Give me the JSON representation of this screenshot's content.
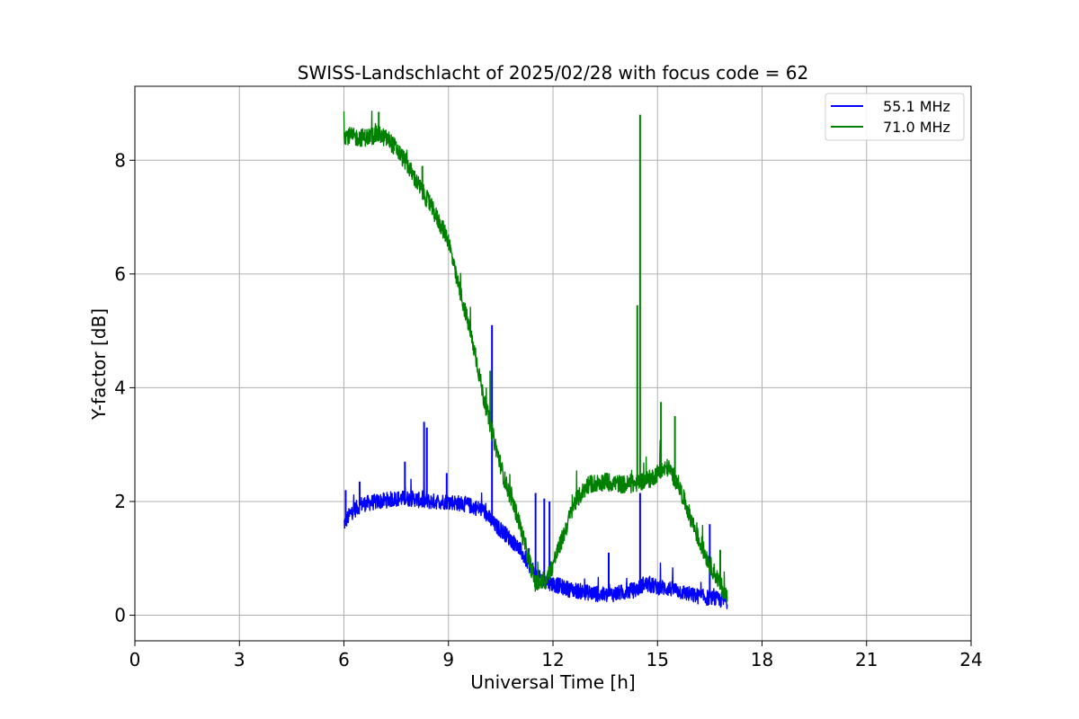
{
  "chart_data": {
    "type": "line",
    "title": "SWISS-Landschlacht of 2025/02/28 with focus code = 62",
    "xlabel": "Universal Time [h]",
    "ylabel": "Y-factor [dB]",
    "xlim": [
      0,
      24
    ],
    "ylim": [
      -0.45,
      9.3
    ],
    "xticks": [
      0,
      3,
      6,
      9,
      12,
      15,
      18,
      21,
      24
    ],
    "yticks": [
      0,
      2,
      4,
      6,
      8
    ],
    "grid": true,
    "legend_position": "top-right",
    "series": [
      {
        "name": "55.1 MHz",
        "color": "#0000ff",
        "x": [
          6.0,
          6.2,
          6.5,
          7.0,
          7.5,
          8.0,
          8.3,
          8.6,
          9.0,
          9.5,
          10.0,
          10.3,
          10.6,
          11.0,
          11.3,
          11.6,
          12.0,
          12.5,
          13.0,
          13.5,
          14.0,
          14.4,
          14.5,
          14.6,
          15.0,
          15.5,
          16.0,
          16.5,
          17.0
        ],
        "y": [
          1.6,
          1.8,
          1.95,
          2.0,
          2.05,
          2.05,
          2.0,
          2.0,
          2.0,
          1.95,
          1.85,
          1.6,
          1.45,
          1.2,
          0.9,
          0.65,
          0.55,
          0.45,
          0.4,
          0.35,
          0.4,
          0.45,
          0.5,
          0.55,
          0.5,
          0.45,
          0.35,
          0.3,
          0.25
        ]
      },
      {
        "name": "71.0 MHz",
        "color": "#008000",
        "x": [
          6.0,
          6.3,
          6.6,
          7.0,
          7.3,
          7.5,
          7.8,
          8.1,
          8.4,
          8.7,
          9.0,
          9.2,
          9.5,
          9.8,
          10.0,
          10.3,
          10.6,
          11.0,
          11.3,
          11.5,
          11.8,
          12.0,
          12.3,
          12.6,
          13.0,
          13.5,
          14.0,
          14.3,
          14.5,
          14.8,
          15.0,
          15.3,
          15.6,
          15.9,
          16.2,
          16.5,
          16.8,
          17.0
        ],
        "y": [
          8.45,
          8.4,
          8.4,
          8.45,
          8.35,
          8.2,
          7.95,
          7.6,
          7.3,
          6.95,
          6.6,
          6.0,
          5.3,
          4.5,
          3.85,
          3.1,
          2.4,
          1.7,
          1.0,
          0.55,
          0.6,
          0.9,
          1.4,
          1.95,
          2.3,
          2.35,
          2.3,
          2.3,
          2.35,
          2.4,
          2.5,
          2.6,
          2.3,
          1.8,
          1.3,
          0.9,
          0.55,
          0.3
        ]
      }
    ],
    "spikes": [
      {
        "series": "55.1 MHz",
        "x": 6.05,
        "y": 2.2
      },
      {
        "series": "55.1 MHz",
        "x": 6.45,
        "y": 2.35
      },
      {
        "series": "55.1 MHz",
        "x": 7.75,
        "y": 2.7
      },
      {
        "series": "55.1 MHz",
        "x": 8.3,
        "y": 3.4
      },
      {
        "series": "55.1 MHz",
        "x": 8.38,
        "y": 3.3
      },
      {
        "series": "55.1 MHz",
        "x": 8.95,
        "y": 2.5
      },
      {
        "series": "55.1 MHz",
        "x": 10.25,
        "y": 5.1
      },
      {
        "series": "55.1 MHz",
        "x": 11.5,
        "y": 2.15
      },
      {
        "series": "55.1 MHz",
        "x": 11.75,
        "y": 2.05
      },
      {
        "series": "55.1 MHz",
        "x": 11.9,
        "y": 2.0
      },
      {
        "series": "55.1 MHz",
        "x": 13.6,
        "y": 1.1
      },
      {
        "series": "55.1 MHz",
        "x": 14.5,
        "y": 2.15
      },
      {
        "series": "55.1 MHz",
        "x": 16.5,
        "y": 1.6
      },
      {
        "series": "71.0 MHz",
        "x": 7.0,
        "y": 8.85
      },
      {
        "series": "71.0 MHz",
        "x": 8.25,
        "y": 7.9
      },
      {
        "series": "71.0 MHz",
        "x": 10.2,
        "y": 4.3
      },
      {
        "series": "71.0 MHz",
        "x": 14.42,
        "y": 5.45
      },
      {
        "series": "71.0 MHz",
        "x": 14.5,
        "y": 8.8
      },
      {
        "series": "71.0 MHz",
        "x": 15.1,
        "y": 3.75
      },
      {
        "series": "71.0 MHz",
        "x": 15.5,
        "y": 3.5
      },
      {
        "series": "71.0 MHz",
        "x": 16.8,
        "y": 1.15
      }
    ]
  }
}
